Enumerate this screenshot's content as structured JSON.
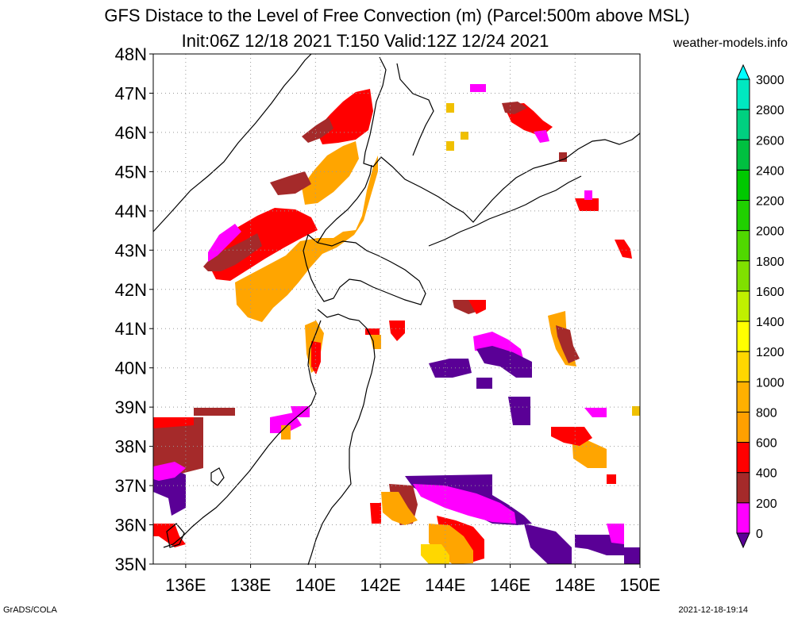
{
  "header": {
    "title_line1": "GFS Distace to the Level of Free Convection (m) (Parcel:500m above MSL)",
    "title_line2": "Init:06Z 12/18 2021 T:150 Valid:12Z 12/24 2021",
    "credit": "weather-models.info"
  },
  "footer": {
    "left": "GrADS/COLA",
    "right": "2021-12-18-19:14"
  },
  "map": {
    "lat_labels": [
      "48N",
      "47N",
      "46N",
      "45N",
      "44N",
      "43N",
      "42N",
      "41N",
      "40N",
      "39N",
      "38N",
      "37N",
      "36N",
      "35N"
    ],
    "lon_labels": [
      "136E",
      "138E",
      "140E",
      "142E",
      "144E",
      "146E",
      "148E",
      "150E"
    ],
    "colors": {
      "purple": "#5a0096",
      "magenta": "#ff00ff",
      "brown": "#a52a2a",
      "red": "#ff0000",
      "orange": "#ffa500",
      "amber": "#f0c000",
      "yellow": "#ffd700",
      "coast": "#000000",
      "grid": "#999999"
    }
  },
  "colorbar": {
    "labels": [
      "3000",
      "2800",
      "2600",
      "2400",
      "2200",
      "2000",
      "1800",
      "1600",
      "1400",
      "1200",
      "1000",
      "800",
      "600",
      "400",
      "200",
      "0"
    ],
    "colors": [
      "#00ffff",
      "#00e8c0",
      "#00d080",
      "#00c040",
      "#00c800",
      "#20d000",
      "#50d800",
      "#80e000",
      "#c0f000",
      "#ffff00",
      "#ffd700",
      "#ffb000",
      "#ffa000",
      "#ff0000",
      "#a52a2a",
      "#ff00ff",
      "#5a0096"
    ]
  }
}
